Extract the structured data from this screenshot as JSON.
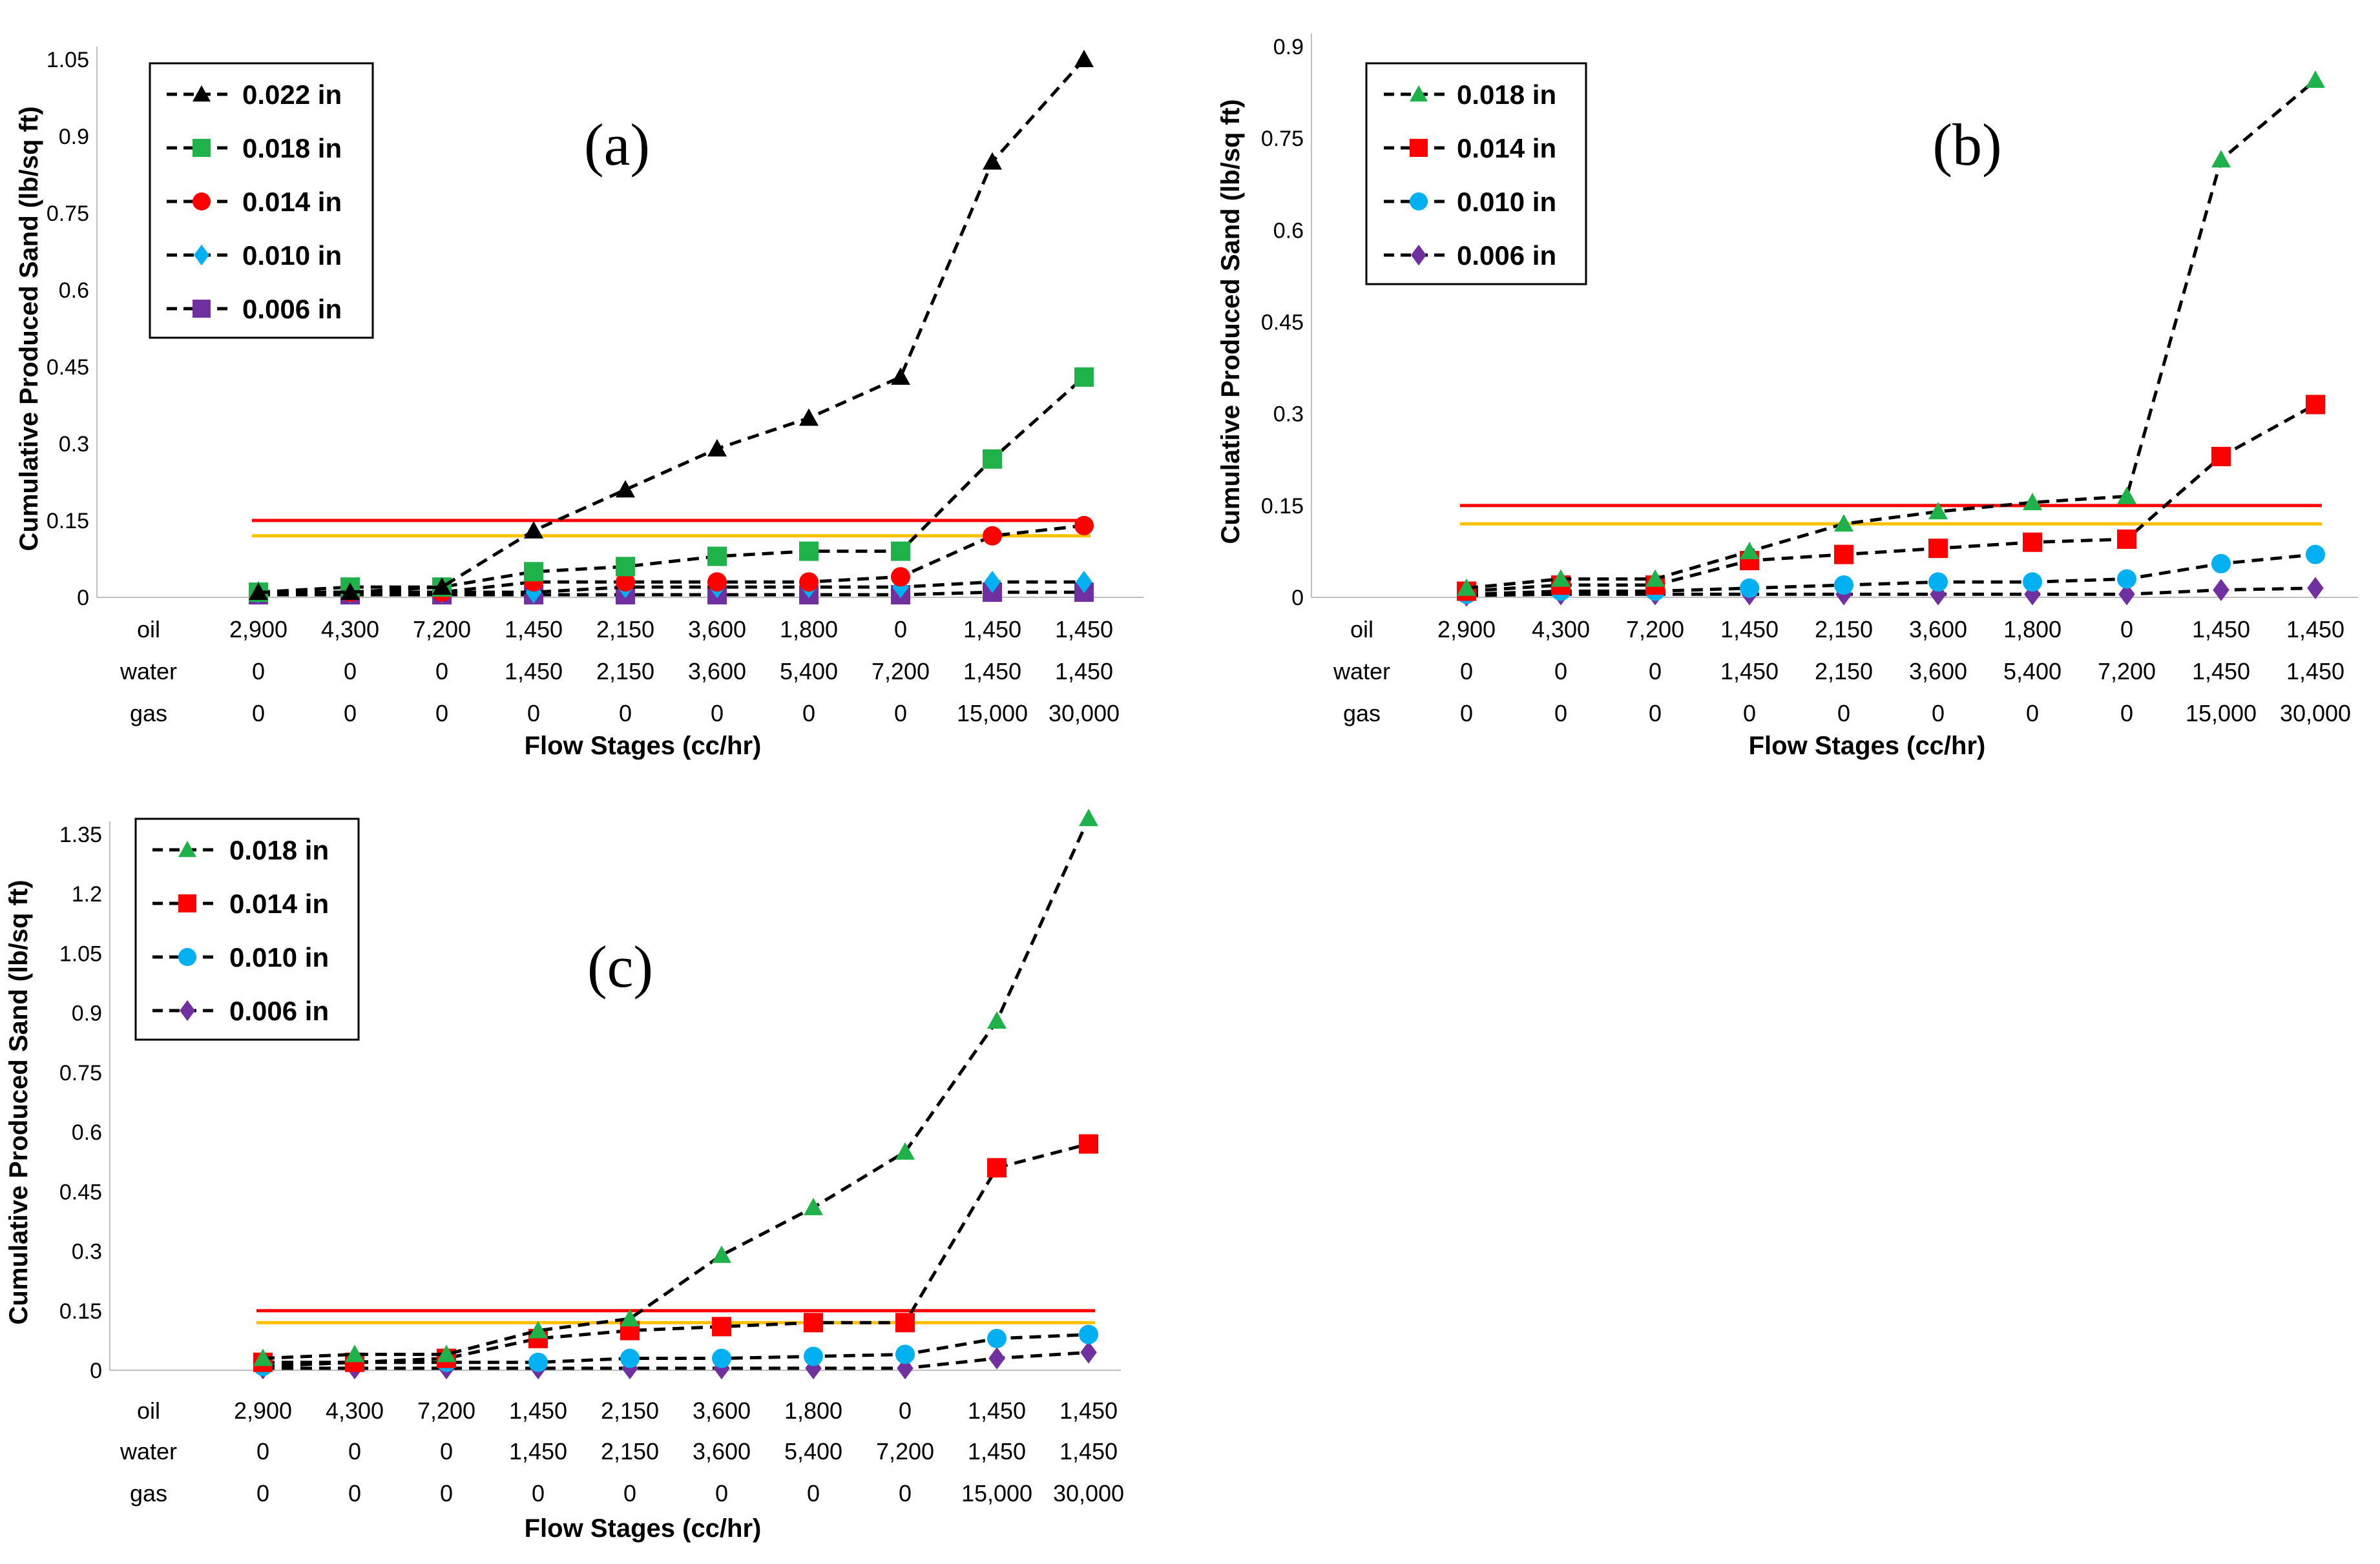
{
  "chart_data": [
    {
      "type": "line",
      "panel_label": "(a)",
      "ylabel": "Cumulative Produced Sand (lb/sq ft)",
      "xlabel": "Flow Stages (cc/hr)",
      "y_ticks": [
        "0",
        "0.15",
        "0.3",
        "0.45",
        "0.6",
        "0.75",
        "0.9",
        "1.05"
      ],
      "ylim": [
        0,
        1.05
      ],
      "flow_rows": [
        {
          "label": "oil",
          "values": [
            "2,900",
            "4,300",
            "7,200",
            "1,450",
            "2,150",
            "3,600",
            "1,800",
            "0",
            "1,450",
            "1,450"
          ]
        },
        {
          "label": "water",
          "values": [
            "0",
            "0",
            "0",
            "1,450",
            "2,150",
            "3,600",
            "5,400",
            "7,200",
            "1,450",
            "1,450"
          ]
        },
        {
          "label": "gas",
          "values": [
            "0",
            "0",
            "0",
            "0",
            "0",
            "0",
            "0",
            "0",
            "15,000",
            "30,000"
          ]
        }
      ],
      "reference_lines": [
        {
          "name": "red-limit",
          "y": 0.15,
          "color": "#ff0000"
        },
        {
          "name": "orange-limit",
          "y": 0.12,
          "color": "#ffc000"
        }
      ],
      "series": [
        {
          "name": "0.022 in",
          "marker": "triangle",
          "color": "#000000",
          "values": [
            0.01,
            0.01,
            0.02,
            0.13,
            0.21,
            0.29,
            0.35,
            0.43,
            0.85,
            1.05
          ]
        },
        {
          "name": "0.018 in",
          "marker": "square",
          "color": "#1fb24a",
          "values": [
            0.01,
            0.02,
            0.02,
            0.05,
            0.06,
            0.08,
            0.09,
            0.09,
            0.27,
            0.43
          ]
        },
        {
          "name": "0.014 in",
          "marker": "circle",
          "color": "#ff0000",
          "values": [
            0.01,
            0.01,
            0.01,
            0.03,
            0.03,
            0.03,
            0.03,
            0.04,
            0.12,
            0.14
          ]
        },
        {
          "name": "0.010 in",
          "marker": "diamond",
          "color": "#00b0f0",
          "values": [
            0.01,
            0.01,
            0.01,
            0.01,
            0.02,
            0.02,
            0.02,
            0.02,
            0.03,
            0.03
          ]
        },
        {
          "name": "0.006 in",
          "marker": "square",
          "color": "#7030a0",
          "values": [
            0.005,
            0.005,
            0.005,
            0.005,
            0.005,
            0.005,
            0.005,
            0.005,
            0.01,
            0.01
          ]
        }
      ],
      "legend_position": "top-left"
    },
    {
      "type": "line",
      "panel_label": "(b)",
      "ylabel": "Cumulative Produced Sand (lb/sq ft)",
      "xlabel": "Flow Stages (cc/hr)",
      "y_ticks": [
        "0",
        "0.15",
        "0.3",
        "0.45",
        "0.6",
        "0.75",
        "0.9"
      ],
      "ylim": [
        0,
        0.9
      ],
      "flow_rows": [
        {
          "label": "oil",
          "values": [
            "2,900",
            "4,300",
            "7,200",
            "1,450",
            "2,150",
            "3,600",
            "1,800",
            "0",
            "1,450",
            "1,450"
          ]
        },
        {
          "label": "water",
          "values": [
            "0",
            "0",
            "0",
            "1,450",
            "2,150",
            "3,600",
            "5,400",
            "7,200",
            "1,450",
            "1,450"
          ]
        },
        {
          "label": "gas",
          "values": [
            "0",
            "0",
            "0",
            "0",
            "0",
            "0",
            "0",
            "0",
            "15,000",
            "30,000"
          ]
        }
      ],
      "reference_lines": [
        {
          "name": "red-limit",
          "y": 0.15,
          "color": "#ff0000"
        },
        {
          "name": "orange-limit",
          "y": 0.12,
          "color": "#ffc000"
        }
      ],
      "series": [
        {
          "name": "0.018 in",
          "marker": "triangle",
          "color": "#1fb24a",
          "values": [
            0.015,
            0.03,
            0.03,
            0.075,
            0.12,
            0.14,
            0.155,
            0.165,
            0.715,
            0.845
          ]
        },
        {
          "name": "0.014 in",
          "marker": "square",
          "color": "#ff0000",
          "values": [
            0.01,
            0.02,
            0.02,
            0.06,
            0.07,
            0.08,
            0.09,
            0.095,
            0.23,
            0.315
          ]
        },
        {
          "name": "0.010 in",
          "marker": "circle",
          "color": "#00b0f0",
          "values": [
            0.005,
            0.01,
            0.01,
            0.015,
            0.02,
            0.025,
            0.025,
            0.03,
            0.055,
            0.07
          ]
        },
        {
          "name": "0.006 in",
          "marker": "diamond",
          "color": "#7030a0",
          "values": [
            0.003,
            0.005,
            0.005,
            0.005,
            0.005,
            0.005,
            0.005,
            0.005,
            0.012,
            0.015
          ]
        }
      ],
      "legend_position": "top-left"
    },
    {
      "type": "line",
      "panel_label": "(c)",
      "ylabel": "Cumulative Produced Sand (lb/sq ft)",
      "xlabel": "Flow Stages (cc/hr)",
      "y_ticks": [
        "0",
        "0.15",
        "0.3",
        "0.45",
        "0.6",
        "0.75",
        "0.9",
        "1.05",
        "1.2",
        "1.35"
      ],
      "ylim": [
        0,
        1.35
      ],
      "flow_rows": [
        {
          "label": "oil",
          "values": [
            "2,900",
            "4,300",
            "7,200",
            "1,450",
            "2,150",
            "3,600",
            "1,800",
            "0",
            "1,450",
            "1,450"
          ]
        },
        {
          "label": "water",
          "values": [
            "0",
            "0",
            "0",
            "1,450",
            "2,150",
            "3,600",
            "5,400",
            "7,200",
            "1,450",
            "1,450"
          ]
        },
        {
          "label": "gas",
          "values": [
            "0",
            "0",
            "0",
            "0",
            "0",
            "0",
            "0",
            "0",
            "15,000",
            "30,000"
          ]
        }
      ],
      "reference_lines": [
        {
          "name": "red-limit",
          "y": 0.15,
          "color": "#ff0000"
        },
        {
          "name": "orange-limit",
          "y": 0.12,
          "color": "#ffc000"
        }
      ],
      "series": [
        {
          "name": "0.018 in",
          "marker": "triangle",
          "color": "#1fb24a",
          "values": [
            0.03,
            0.04,
            0.04,
            0.1,
            0.13,
            0.29,
            0.41,
            0.55,
            0.88,
            1.39
          ]
        },
        {
          "name": "0.014 in",
          "marker": "square",
          "color": "#ff0000",
          "values": [
            0.02,
            0.02,
            0.03,
            0.08,
            0.1,
            0.11,
            0.12,
            0.12,
            0.51,
            0.57
          ]
        },
        {
          "name": "0.010 in",
          "marker": "circle",
          "color": "#00b0f0",
          "values": [
            0.01,
            0.02,
            0.02,
            0.02,
            0.03,
            0.03,
            0.035,
            0.04,
            0.08,
            0.09
          ]
        },
        {
          "name": "0.006 in",
          "marker": "diamond",
          "color": "#7030a0",
          "values": [
            0.005,
            0.005,
            0.005,
            0.005,
            0.005,
            0.005,
            0.005,
            0.005,
            0.03,
            0.045
          ]
        }
      ],
      "legend_position": "top-left"
    }
  ]
}
